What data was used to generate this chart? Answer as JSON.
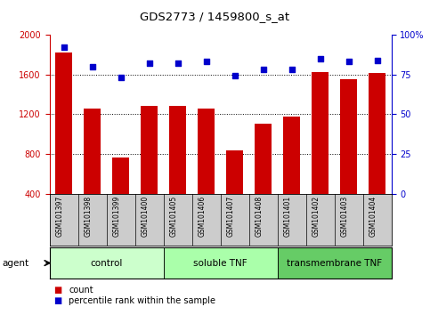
{
  "title": "GDS2773 / 1459800_s_at",
  "samples": [
    "GSM101397",
    "GSM101398",
    "GSM101399",
    "GSM101400",
    "GSM101405",
    "GSM101406",
    "GSM101407",
    "GSM101408",
    "GSM101401",
    "GSM101402",
    "GSM101403",
    "GSM101404"
  ],
  "counts": [
    1820,
    1255,
    760,
    1285,
    1280,
    1255,
    835,
    1100,
    1175,
    1625,
    1555,
    1615
  ],
  "percentile": [
    92,
    80,
    73,
    82,
    82,
    83,
    74,
    78,
    78,
    85,
    83,
    84
  ],
  "bar_color": "#cc0000",
  "dot_color": "#0000cc",
  "ylim_left": [
    400,
    2000
  ],
  "ylim_right": [
    0,
    100
  ],
  "yticks_left": [
    400,
    800,
    1200,
    1600,
    2000
  ],
  "yticks_right": [
    0,
    25,
    50,
    75,
    100
  ],
  "yticklabels_right": [
    "0",
    "25",
    "50",
    "75",
    "100%"
  ],
  "groups": [
    {
      "label": "control",
      "start": 0,
      "end": 3
    },
    {
      "label": "soluble TNF",
      "start": 4,
      "end": 7
    },
    {
      "label": "transmembrane TNF",
      "start": 8,
      "end": 11
    }
  ],
  "group_colors": [
    "#ccffcc",
    "#aaffaa",
    "#66cc66"
  ],
  "agent_label": "agent",
  "legend_count_label": "count",
  "legend_pct_label": "percentile rank within the sample",
  "tick_color_left": "#cc0000",
  "tick_color_right": "#0000cc",
  "tick_bg_color": "#cccccc"
}
